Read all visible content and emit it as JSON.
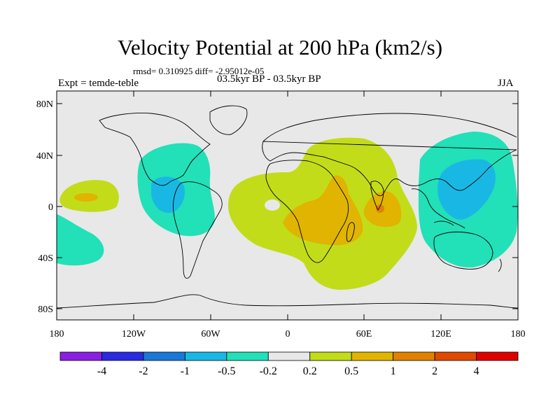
{
  "title": "Velocity Potential at 200 hPa (km2/s)",
  "stats_text": "rmsd= 0.310925 diff= -2.95012e-05",
  "experiment": "Expt = temde-teble",
  "period": "03.5kyr BP - 03.5kyr BP",
  "season": "JJA",
  "lat_ticks": [
    "80N",
    "40N",
    "0",
    "40S",
    "80S"
  ],
  "lon_ticks": [
    "180",
    "120W",
    "60W",
    "0",
    "60E",
    "120E",
    "180"
  ],
  "colorbar": {
    "labels": [
      "-4",
      "-2",
      "-1",
      "-0.5",
      "-0.2",
      "0.2",
      "0.5",
      "1",
      "2",
      "4"
    ],
    "colors": [
      "#8a1fe0",
      "#2a2ae0",
      "#1a78d8",
      "#19b8e4",
      "#22e0b8",
      "#e8e8e8",
      "#c2dc1a",
      "#e0b400",
      "#e08200",
      "#e04a00",
      "#e00000"
    ]
  },
  "colors": {
    "land_outline": "#000000",
    "background": "#e8e8e8"
  }
}
